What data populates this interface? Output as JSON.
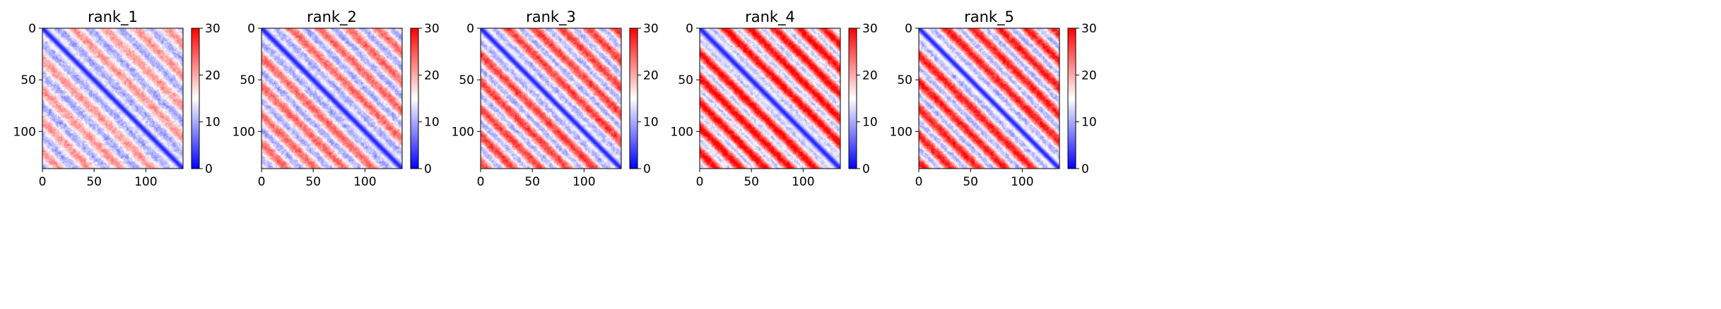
{
  "colorscale": {
    "low": "#0000ff",
    "mid": "#ffffff",
    "high": "#ff0000"
  },
  "chart_data": [
    {
      "type": "heatmap",
      "title": "rank_1",
      "size": 136,
      "xticks": [
        0,
        50,
        100
      ],
      "yticks": [
        0,
        50,
        100
      ],
      "xlim": [
        0,
        136
      ],
      "ylim": [
        136,
        0
      ],
      "colorbar": {
        "range": [
          0,
          30
        ],
        "ticks": [
          0,
          10,
          20,
          30
        ]
      },
      "pattern": {
        "base": 15.5,
        "amp": 5.5,
        "period": 30,
        "diag_width": 3.5
      }
    },
    {
      "type": "heatmap",
      "title": "rank_2",
      "size": 136,
      "xticks": [
        0,
        50,
        100
      ],
      "yticks": [
        0,
        50,
        100
      ],
      "xlim": [
        0,
        136
      ],
      "ylim": [
        136,
        0
      ],
      "colorbar": {
        "range": [
          0,
          30
        ],
        "ticks": [
          0,
          10,
          20,
          30
        ]
      },
      "pattern": {
        "base": 17,
        "amp": 7,
        "period": 28,
        "diag_width": 4
      }
    },
    {
      "type": "heatmap",
      "title": "rank_3",
      "size": 136,
      "xticks": [
        0,
        50,
        100
      ],
      "yticks": [
        0,
        50,
        100
      ],
      "xlim": [
        0,
        136
      ],
      "ylim": [
        136,
        0
      ],
      "colorbar": {
        "range": [
          0,
          30
        ],
        "ticks": [
          0,
          10,
          20,
          30
        ]
      },
      "pattern": {
        "base": 18.5,
        "amp": 8,
        "period": 26,
        "diag_width": 4
      }
    },
    {
      "type": "heatmap",
      "title": "rank_4",
      "size": 136,
      "xticks": [
        0,
        50,
        100
      ],
      "yticks": [
        0,
        50,
        100
      ],
      "xlim": [
        0,
        136
      ],
      "ylim": [
        136,
        0
      ],
      "colorbar": {
        "range": [
          0,
          30
        ],
        "ticks": [
          0,
          10,
          20,
          30
        ]
      },
      "pattern": {
        "base": 21,
        "amp": 9,
        "period": 24,
        "diag_width": 4.5
      }
    },
    {
      "type": "heatmap",
      "title": "rank_5",
      "size": 136,
      "xticks": [
        0,
        50,
        100
      ],
      "yticks": [
        0,
        50,
        100
      ],
      "xlim": [
        0,
        136
      ],
      "ylim": [
        136,
        0
      ],
      "colorbar": {
        "range": [
          0,
          30
        ],
        "ticks": [
          0,
          10,
          20,
          30
        ]
      },
      "pattern": {
        "base": 19.5,
        "amp": 9,
        "period": 26,
        "diag_width": 4
      }
    }
  ]
}
